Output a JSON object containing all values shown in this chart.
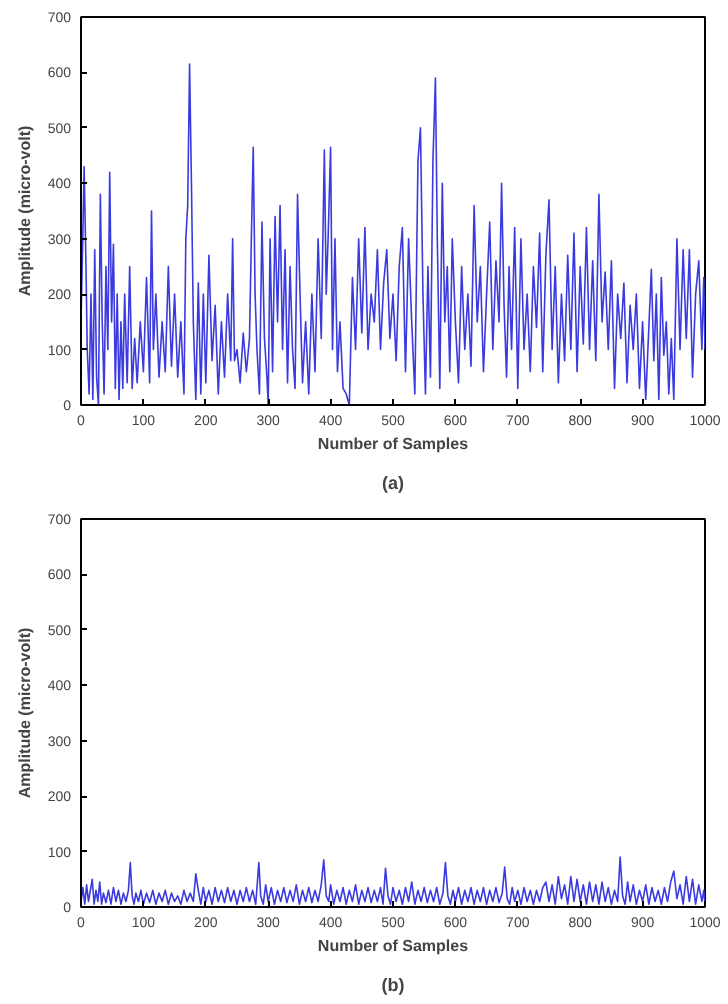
{
  "chart_data": [
    {
      "type": "line",
      "title": "(a)",
      "xlabel": "Number of Samples",
      "ylabel": "Amplitude (micro-volt)",
      "xlim": [
        0,
        1000
      ],
      "ylim": [
        0,
        700
      ],
      "xticks": [
        0,
        100,
        200,
        300,
        400,
        500,
        600,
        700,
        800,
        900,
        1000
      ],
      "yticks": [
        0,
        100,
        200,
        300,
        400,
        500,
        600,
        700
      ],
      "grid": false,
      "x": [
        0,
        3,
        5,
        8,
        10,
        13,
        16,
        19,
        22,
        25,
        28,
        31,
        34,
        37,
        40,
        43,
        46,
        49,
        52,
        55,
        58,
        61,
        64,
        67,
        70,
        74,
        78,
        82,
        86,
        90,
        95,
        100,
        105,
        110,
        113,
        116,
        120,
        125,
        130,
        135,
        140,
        145,
        150,
        155,
        160,
        165,
        168,
        171,
        174,
        177,
        180,
        184,
        188,
        192,
        196,
        200,
        205,
        210,
        215,
        220,
        225,
        230,
        235,
        240,
        243,
        246,
        250,
        255,
        260,
        265,
        270,
        273,
        276,
        279,
        282,
        286,
        290,
        294,
        298,
        300,
        303,
        307,
        311,
        315,
        319,
        323,
        327,
        331,
        335,
        339,
        343,
        347,
        351,
        355,
        360,
        365,
        370,
        375,
        380,
        385,
        390,
        393,
        396,
        400,
        403,
        407,
        411,
        415,
        420,
        425,
        430,
        435,
        440,
        445,
        450,
        455,
        460,
        465,
        470,
        475,
        480,
        485,
        490,
        495,
        500,
        505,
        510,
        515,
        520,
        525,
        530,
        535,
        540,
        544,
        548,
        552,
        556,
        560,
        564,
        568,
        571,
        575,
        579,
        583,
        587,
        591,
        595,
        600,
        605,
        610,
        615,
        620,
        625,
        630,
        635,
        640,
        645,
        650,
        655,
        660,
        665,
        670,
        674,
        678,
        682,
        686,
        690,
        695,
        700,
        705,
        710,
        715,
        720,
        725,
        730,
        735,
        740,
        745,
        750,
        755,
        760,
        765,
        770,
        775,
        780,
        785,
        790,
        795,
        800,
        805,
        810,
        815,
        820,
        825,
        830,
        835,
        840,
        845,
        850,
        855,
        860,
        865,
        870,
        875,
        880,
        885,
        890,
        895,
        900,
        905,
        910,
        914,
        918,
        922,
        926,
        930,
        934,
        938,
        942,
        946,
        950,
        955,
        960,
        965,
        970,
        975,
        980,
        985,
        990,
        995,
        998,
        1000
      ],
      "series": [
        {
          "color": "#3a3ae0",
          "values": [
            150,
            310,
            430,
            250,
            100,
            20,
            200,
            10,
            280,
            50,
            0,
            380,
            150,
            20,
            250,
            100,
            420,
            150,
            290,
            30,
            200,
            10,
            150,
            30,
            200,
            40,
            250,
            30,
            120,
            40,
            150,
            60,
            230,
            40,
            350,
            100,
            200,
            50,
            150,
            60,
            250,
            70,
            200,
            50,
            150,
            20,
            300,
            360,
            615,
            400,
            150,
            10,
            220,
            20,
            200,
            40,
            270,
            80,
            180,
            20,
            150,
            50,
            200,
            80,
            300,
            80,
            100,
            40,
            130,
            60,
            120,
            300,
            465,
            200,
            100,
            20,
            330,
            120,
            50,
            0,
            300,
            60,
            340,
            150,
            360,
            100,
            280,
            40,
            250,
            100,
            30,
            380,
            200,
            40,
            150,
            20,
            200,
            60,
            300,
            120,
            460,
            200,
            300,
            465,
            100,
            300,
            60,
            150,
            30,
            20,
            0,
            230,
            100,
            300,
            130,
            320,
            100,
            200,
            150,
            280,
            100,
            220,
            280,
            120,
            200,
            80,
            250,
            320,
            60,
            300,
            150,
            20,
            440,
            500,
            200,
            20,
            250,
            50,
            440,
            590,
            300,
            30,
            400,
            150,
            250,
            60,
            300,
            150,
            40,
            250,
            100,
            200,
            70,
            360,
            150,
            250,
            60,
            200,
            330,
            100,
            260,
            150,
            400,
            180,
            50,
            250,
            100,
            320,
            30,
            300,
            100,
            200,
            60,
            250,
            140,
            310,
            60,
            270,
            370,
            100,
            250,
            40,
            200,
            80,
            270,
            100,
            310,
            60,
            250,
            110,
            320,
            100,
            260,
            80,
            380,
            150,
            240,
            100,
            260,
            30,
            200,
            120,
            220,
            40,
            180,
            100,
            200,
            30,
            150,
            10,
            140,
            245,
            80,
            200,
            10,
            230,
            90,
            150,
            20,
            120,
            10,
            300,
            100,
            280,
            120,
            280,
            50,
            200,
            260,
            100,
            230,
            100
          ]
        }
      ]
    },
    {
      "type": "line",
      "title": "(b)",
      "xlabel": "Number of Samples",
      "ylabel": "Amplitude (micro-volt)",
      "xlim": [
        0,
        1000
      ],
      "ylim": [
        0,
        700
      ],
      "xticks": [
        0,
        100,
        200,
        300,
        400,
        500,
        600,
        700,
        800,
        900,
        1000
      ],
      "yticks": [
        0,
        100,
        200,
        300,
        400,
        500,
        600,
        700
      ],
      "grid": false,
      "x": [
        0,
        3,
        6,
        9,
        12,
        15,
        18,
        21,
        24,
        27,
        30,
        33,
        36,
        40,
        44,
        48,
        52,
        56,
        60,
        64,
        68,
        72,
        76,
        79,
        82,
        85,
        88,
        92,
        96,
        100,
        105,
        110,
        115,
        120,
        125,
        130,
        135,
        140,
        145,
        150,
        155,
        160,
        165,
        170,
        175,
        180,
        184,
        188,
        192,
        196,
        200,
        205,
        210,
        215,
        220,
        225,
        230,
        235,
        240,
        245,
        250,
        255,
        260,
        265,
        270,
        275,
        280,
        285,
        288,
        292,
        296,
        300,
        305,
        310,
        315,
        320,
        325,
        330,
        335,
        340,
        345,
        350,
        355,
        360,
        365,
        370,
        375,
        380,
        385,
        389,
        393,
        397,
        400,
        405,
        410,
        415,
        420,
        425,
        430,
        435,
        440,
        445,
        450,
        455,
        460,
        465,
        470,
        475,
        480,
        484,
        488,
        492,
        496,
        500,
        505,
        510,
        515,
        520,
        525,
        530,
        535,
        540,
        545,
        550,
        555,
        560,
        565,
        570,
        575,
        580,
        584,
        588,
        592,
        596,
        600,
        605,
        610,
        615,
        620,
        625,
        630,
        635,
        640,
        645,
        650,
        655,
        660,
        665,
        670,
        675,
        679,
        683,
        687,
        691,
        695,
        700,
        705,
        710,
        715,
        720,
        725,
        730,
        735,
        740,
        745,
        750,
        755,
        760,
        765,
        770,
        775,
        780,
        785,
        790,
        795,
        800,
        805,
        810,
        815,
        820,
        825,
        830,
        835,
        840,
        845,
        850,
        855,
        860,
        864,
        868,
        872,
        876,
        880,
        885,
        890,
        895,
        900,
        905,
        910,
        915,
        920,
        925,
        930,
        935,
        940,
        945,
        950,
        955,
        960,
        965,
        970,
        975,
        980,
        985,
        990,
        995,
        998,
        1000
      ],
      "series": [
        {
          "color": "#3a3ae0",
          "values": [
            10,
            35,
            5,
            40,
            10,
            30,
            50,
            5,
            30,
            10,
            45,
            5,
            25,
            8,
            30,
            5,
            35,
            10,
            30,
            5,
            25,
            10,
            30,
            80,
            20,
            5,
            25,
            10,
            30,
            5,
            25,
            8,
            30,
            5,
            25,
            10,
            30,
            5,
            25,
            10,
            20,
            5,
            30,
            10,
            25,
            10,
            60,
            30,
            5,
            35,
            10,
            30,
            5,
            35,
            10,
            30,
            8,
            35,
            10,
            30,
            5,
            30,
            10,
            35,
            10,
            30,
            5,
            80,
            20,
            5,
            40,
            10,
            35,
            5,
            30,
            10,
            35,
            8,
            30,
            10,
            40,
            5,
            30,
            10,
            35,
            8,
            30,
            10,
            40,
            85,
            20,
            10,
            40,
            5,
            30,
            10,
            35,
            5,
            30,
            10,
            40,
            5,
            30,
            10,
            35,
            8,
            30,
            10,
            35,
            5,
            70,
            20,
            5,
            35,
            10,
            30,
            5,
            35,
            10,
            45,
            5,
            30,
            10,
            35,
            8,
            30,
            10,
            35,
            5,
            25,
            80,
            20,
            5,
            30,
            10,
            35,
            5,
            30,
            10,
            35,
            5,
            30,
            10,
            35,
            5,
            30,
            10,
            35,
            8,
            25,
            72,
            15,
            5,
            35,
            10,
            30,
            5,
            35,
            10,
            30,
            5,
            30,
            10,
            35,
            45,
            10,
            40,
            5,
            55,
            15,
            40,
            5,
            55,
            10,
            50,
            10,
            40,
            5,
            45,
            10,
            40,
            5,
            45,
            10,
            35,
            5,
            30,
            10,
            90,
            20,
            5,
            45,
            10,
            40,
            5,
            30,
            10,
            40,
            5,
            35,
            10,
            30,
            5,
            35,
            10,
            45,
            65,
            15,
            40,
            5,
            55,
            10,
            50,
            5,
            40,
            10,
            30,
            5
          ]
        }
      ]
    }
  ]
}
